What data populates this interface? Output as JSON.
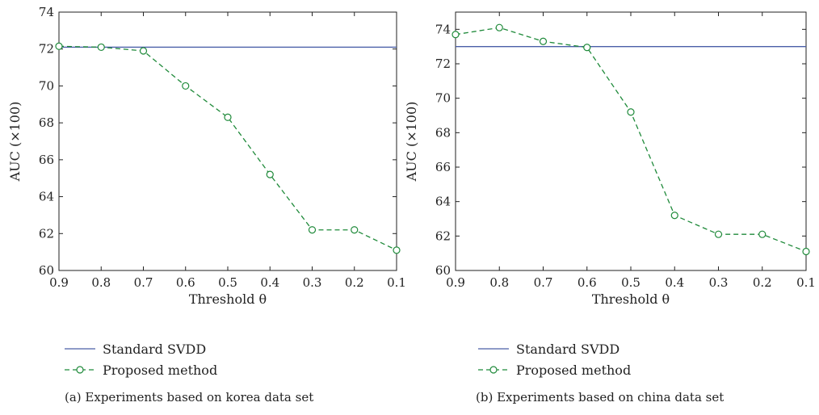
{
  "chart_data": [
    {
      "type": "line",
      "xlabel": "Threshold θ",
      "ylabel": "AUC (×100)",
      "x": [
        0.9,
        0.8,
        0.7,
        0.6,
        0.5,
        0.4,
        0.3,
        0.2,
        0.1
      ],
      "xlim": [
        0.9,
        0.1
      ],
      "ylim": [
        60,
        74
      ],
      "xticks": [
        "0.9",
        "0.8",
        "0.7",
        "0.6",
        "0.5",
        "0.4",
        "0.3",
        "0.2",
        "0.1"
      ],
      "yticks": [
        "60",
        "62",
        "64",
        "66",
        "68",
        "70",
        "72",
        "74"
      ],
      "series": [
        {
          "name": "Standard SVDD",
          "style": "solid",
          "color": "#4a5fa8",
          "values": [
            72.1,
            72.1,
            72.1,
            72.1,
            72.1,
            72.1,
            72.1,
            72.1,
            72.1
          ]
        },
        {
          "name": "Proposed method",
          "style": "dashed-circle",
          "color": "#1f8a3a",
          "values": [
            72.15,
            72.1,
            71.9,
            70.0,
            68.3,
            65.2,
            62.2,
            62.2,
            61.1
          ]
        }
      ],
      "legend_position": "below",
      "caption": "(a)  Experiments based on korea data set"
    },
    {
      "type": "line",
      "xlabel": "Threshold θ",
      "ylabel": "AUC (×100)",
      "x": [
        0.9,
        0.8,
        0.7,
        0.6,
        0.5,
        0.4,
        0.3,
        0.2,
        0.1
      ],
      "xlim": [
        0.9,
        0.1
      ],
      "ylim": [
        60,
        75
      ],
      "xticks": [
        "0.9",
        "0.8",
        "0.7",
        "0.6",
        "0.5",
        "0.4",
        "0.3",
        "0.2",
        "0.1"
      ],
      "yticks": [
        "60",
        "62",
        "64",
        "66",
        "68",
        "70",
        "72",
        "74"
      ],
      "series": [
        {
          "name": "Standard SVDD",
          "style": "solid",
          "color": "#4a5fa8",
          "values": [
            73.0,
            73.0,
            73.0,
            73.0,
            73.0,
            73.0,
            73.0,
            73.0,
            73.0
          ]
        },
        {
          "name": "Proposed method",
          "style": "dashed-circle",
          "color": "#1f8a3a",
          "values": [
            73.7,
            74.1,
            73.3,
            72.95,
            69.2,
            63.2,
            62.1,
            62.1,
            61.1
          ]
        }
      ],
      "legend_position": "below",
      "caption": "(b)  Experiments based on china data set"
    }
  ]
}
